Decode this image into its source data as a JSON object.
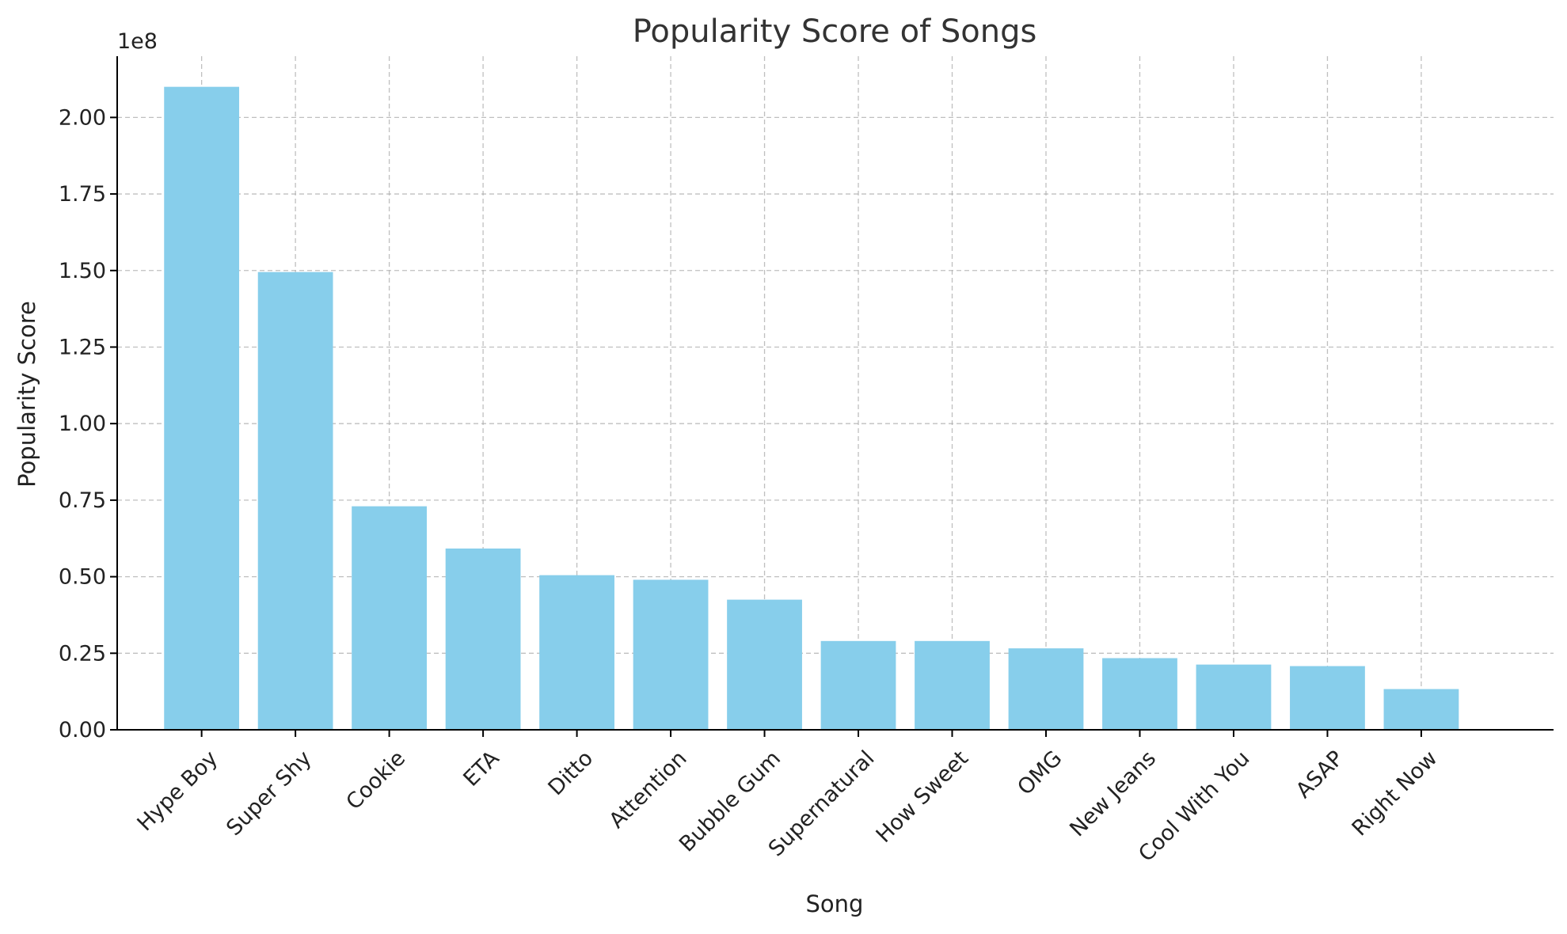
{
  "chart_data": {
    "type": "bar",
    "title": "Popularity Score of Songs",
    "xlabel": "Song",
    "ylabel": "Popularity Score",
    "offset_text": "1e8",
    "categories": [
      "Hype Boy",
      "Super Shy",
      "Cookie",
      "ETA",
      "Ditto",
      "Attention",
      "Bubble Gum",
      "Supernatural",
      "How Sweet",
      "OMG",
      "New Jeans",
      "Cool With You",
      "ASAP",
      "Right Now"
    ],
    "values": [
      210000000,
      149500000,
      73000000,
      59200000,
      50500000,
      49000000,
      42500000,
      29000000,
      29000000,
      26600000,
      23400000,
      21300000,
      20800000,
      13300000
    ],
    "yticks": [
      0,
      25000000,
      50000000,
      75000000,
      100000000,
      125000000,
      150000000,
      175000000,
      200000000
    ],
    "ytick_labels": [
      "0.00",
      "0.25",
      "0.50",
      "0.75",
      "1.00",
      "1.25",
      "1.50",
      "1.75",
      "2.00"
    ],
    "ylim": [
      0,
      220000000
    ],
    "grid": true,
    "bar_color": "#87CEEB"
  }
}
